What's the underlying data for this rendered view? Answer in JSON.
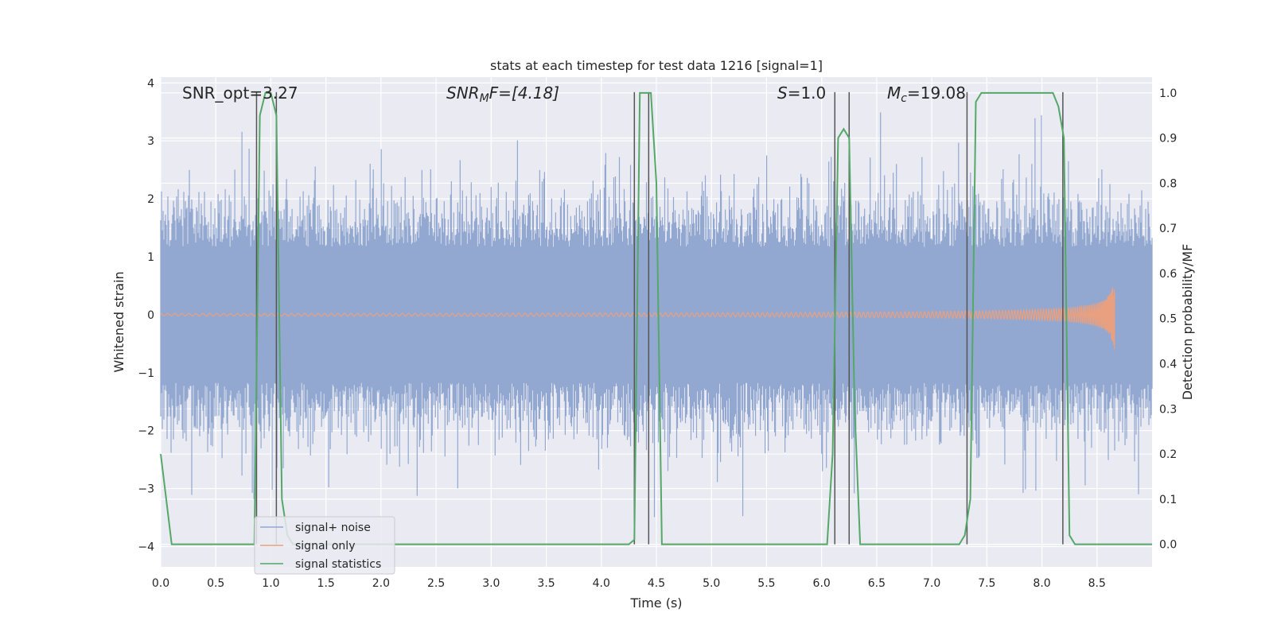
{
  "chart_data": {
    "type": "line",
    "title": "stats at each timestep for test data 1216 [signal=1]",
    "xlabel": "Time (s)",
    "ylabel_left": "Whitened strain",
    "ylabel_right": "Detection probability/MF",
    "xlim": [
      0.0,
      9.0
    ],
    "ylim_left": [
      -4.35,
      4.1
    ],
    "ylim_right": [
      -0.05,
      1.035
    ],
    "x_ticks": [
      "0.0",
      "0.5",
      "1.0",
      "1.5",
      "2.0",
      "2.5",
      "3.0",
      "3.5",
      "4.0",
      "4.5",
      "5.0",
      "5.5",
      "6.0",
      "6.5",
      "7.0",
      "7.5",
      "8.0",
      "8.5"
    ],
    "x_tick_values": [
      0.0,
      0.5,
      1.0,
      1.5,
      2.0,
      2.5,
      3.0,
      3.5,
      4.0,
      4.5,
      5.0,
      5.5,
      6.0,
      6.5,
      7.0,
      7.5,
      8.0,
      8.5
    ],
    "y_left_ticks": [
      "−4",
      "−3",
      "−2",
      "−1",
      "0",
      "1",
      "2",
      "3",
      "4"
    ],
    "y_left_tick_values": [
      -4,
      -3,
      -2,
      -1,
      0,
      1,
      2,
      3,
      4
    ],
    "y_right_ticks": [
      "0.0",
      "0.1",
      "0.2",
      "0.3",
      "0.4",
      "0.5",
      "0.6",
      "0.7",
      "0.8",
      "0.9",
      "1.0"
    ],
    "y_right_tick_values": [
      0.0,
      0.1,
      0.2,
      0.3,
      0.4,
      0.5,
      0.6,
      0.7,
      0.8,
      0.9,
      1.0
    ],
    "grid": true,
    "legend_position": "lower-left",
    "annotations": {
      "snr_opt": "SNR_opt=3.27",
      "snr_mf_main": "SNR",
      "snr_mf_sub": "M",
      "snr_mf_rest": "F=[4.18]",
      "s_main": "S",
      "s_rest": "=1.0",
      "mc_main": "M",
      "mc_sub": "c",
      "mc_rest": "=19.08"
    },
    "series": [
      {
        "name": "signal+ noise",
        "color": "#92a8d1",
        "kind": "noise",
        "amplitude_typical": 1.3,
        "amplitude_max": 3.8
      },
      {
        "name": "signal only",
        "color": "#e8a080",
        "kind": "chirp",
        "end_time": 8.67,
        "peak_amplitude": 0.8
      },
      {
        "name": "signal statistics",
        "color": "#55a868",
        "axis": "right",
        "x": [
          0.0,
          0.05,
          0.1,
          0.85,
          0.9,
          0.95,
          1.0,
          1.05,
          1.1,
          1.15,
          1.2,
          4.25,
          4.3,
          4.35,
          4.4,
          4.45,
          4.5,
          4.55,
          6.05,
          6.1,
          6.15,
          6.2,
          6.25,
          6.3,
          6.35,
          6.4,
          6.45,
          7.25,
          7.3,
          7.35,
          7.4,
          7.45,
          8.0,
          8.05,
          8.1,
          8.15,
          8.2,
          8.25,
          8.3,
          8.35,
          8.4,
          9.0
        ],
        "y": [
          0.2,
          0.1,
          0.0,
          0.0,
          0.95,
          1.0,
          1.0,
          0.95,
          0.1,
          0.02,
          0.0,
          0.0,
          0.01,
          1.0,
          1.0,
          1.0,
          0.8,
          0.0,
          0.0,
          0.2,
          0.9,
          0.92,
          0.9,
          0.3,
          0.0,
          0.0,
          0.0,
          0.0,
          0.02,
          0.1,
          0.98,
          1.0,
          1.0,
          1.0,
          1.0,
          0.97,
          0.9,
          0.02,
          0.0,
          0.0,
          0.0,
          0.0
        ]
      }
    ],
    "vlines_x": [
      0.87,
      1.05,
      4.3,
      4.43,
      6.12,
      6.25,
      7.32,
      8.19
    ]
  }
}
